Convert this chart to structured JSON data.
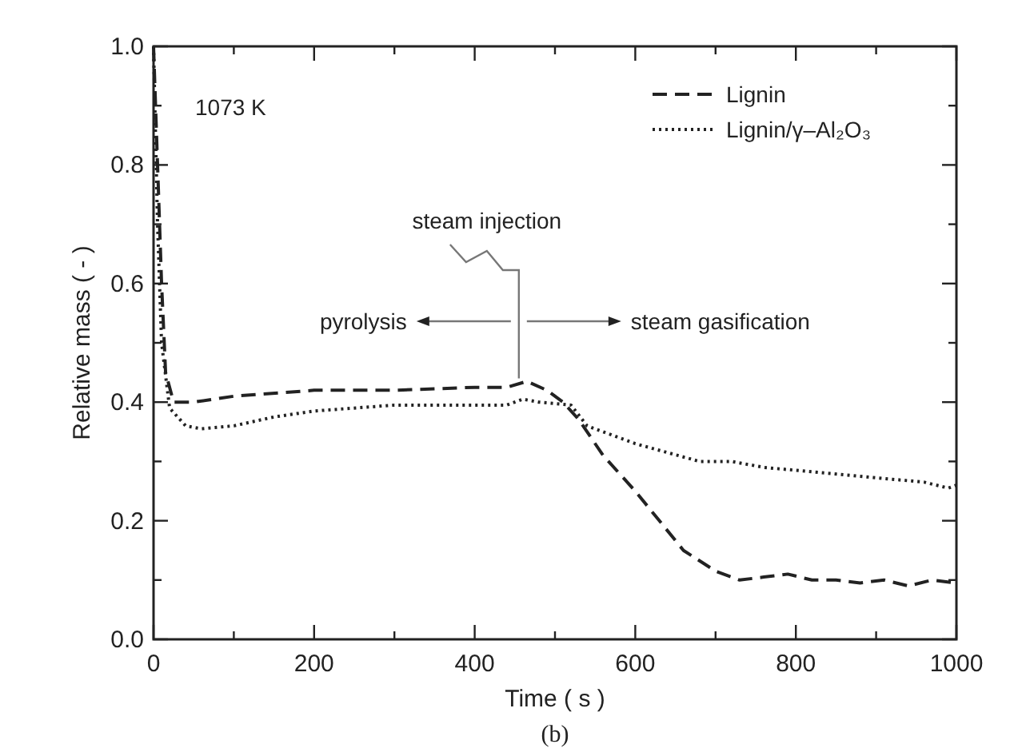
{
  "chart_data": {
    "type": "line",
    "xlabel": "Time ( s )",
    "ylabel": "Relative mass ( - )",
    "xlim": [
      0,
      1000
    ],
    "ylim": [
      0,
      1.0
    ],
    "xticks": [
      0,
      {
        "value": 100,
        "label": null
      },
      200,
      {
        "value": 300,
        "label": null
      },
      400,
      {
        "value": 500,
        "label": null
      },
      600,
      {
        "value": 700,
        "label": null
      },
      800,
      {
        "value": 900,
        "label": null
      },
      1000
    ],
    "yticks": [
      {
        "value": 0,
        "label": "0.0"
      },
      {
        "value": 0.1,
        "label": null
      },
      0.2,
      {
        "value": 0.3,
        "label": null
      },
      0.4,
      {
        "value": 0.5,
        "label": null
      },
      0.6,
      {
        "value": 0.7,
        "label": null
      },
      0.8,
      {
        "value": 0.9,
        "label": null
      },
      {
        "value": 1.0,
        "label": "1.0"
      }
    ],
    "grid": false,
    "legend": "top right",
    "series": [
      {
        "name": "Lignin",
        "color": "#222222",
        "line_style": "dashed",
        "x": [
          0,
          5,
          10,
          15,
          25,
          50,
          100,
          200,
          300,
          400,
          440,
          465,
          490,
          510,
          530,
          560,
          580,
          600,
          630,
          660,
          700,
          730,
          760,
          790,
          820,
          850,
          880,
          910,
          940,
          970,
          1000
        ],
        "values": [
          1.0,
          0.8,
          0.6,
          0.45,
          0.4,
          0.4,
          0.41,
          0.42,
          0.42,
          0.425,
          0.425,
          0.435,
          0.42,
          0.4,
          0.37,
          0.31,
          0.28,
          0.25,
          0.2,
          0.15,
          0.115,
          0.1,
          0.105,
          0.11,
          0.1,
          0.1,
          0.095,
          0.1,
          0.09,
          0.1,
          0.095
        ]
      },
      {
        "name": "Lignin/γ–Al₂O₃",
        "color": "#222222",
        "line_style": "dotted",
        "x": [
          0,
          5,
          10,
          20,
          40,
          60,
          100,
          150,
          200,
          300,
          400,
          440,
          460,
          480,
          520,
          540,
          560,
          600,
          640,
          680,
          720,
          760,
          800,
          840,
          880,
          920,
          960,
          990,
          1000
        ],
        "values": [
          1.0,
          0.7,
          0.5,
          0.39,
          0.36,
          0.355,
          0.36,
          0.375,
          0.385,
          0.395,
          0.395,
          0.395,
          0.405,
          0.4,
          0.395,
          0.36,
          0.35,
          0.33,
          0.315,
          0.3,
          0.3,
          0.29,
          0.285,
          0.28,
          0.275,
          0.27,
          0.265,
          0.255,
          0.26
        ]
      }
    ],
    "annotations": [
      "1073 K",
      {
        "text": "steam injection",
        "x": 455,
        "y": 0.44
      },
      "pyrolysis",
      "steam gasification",
      "(b)"
    ]
  }
}
